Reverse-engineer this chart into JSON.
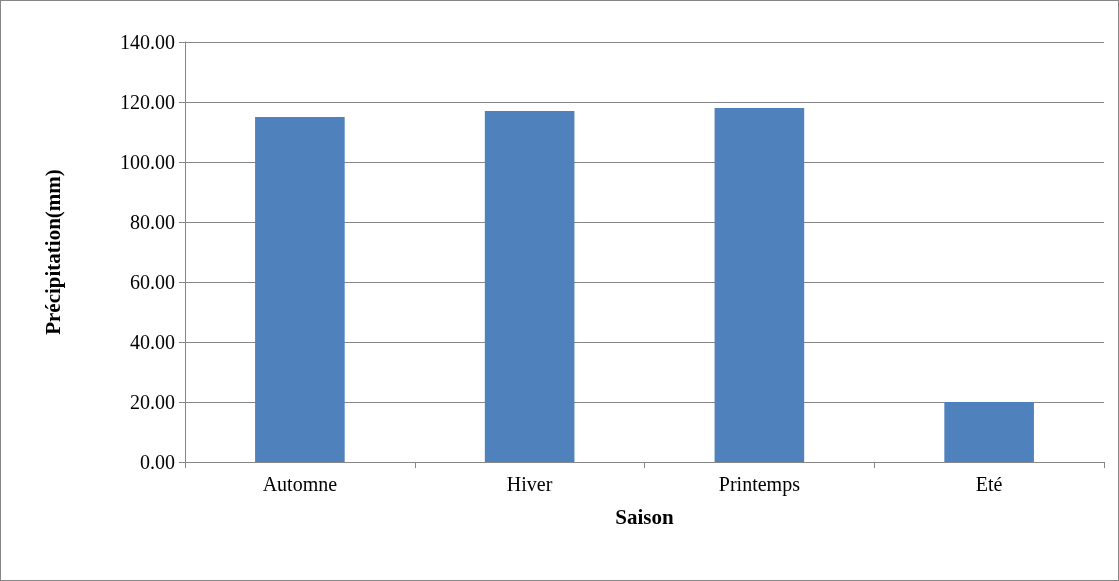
{
  "chart_data": {
    "type": "bar",
    "xlabel": "Saison",
    "ylabel": "Précipitation(mm)",
    "categories": [
      "Automne",
      "Hiver",
      "Printemps",
      "Eté"
    ],
    "values": [
      115,
      117,
      118,
      20
    ],
    "color": "#4f81bd",
    "ylim": [
      0,
      140
    ],
    "yticks": [
      {
        "value": 0,
        "label": "0.00"
      },
      {
        "value": 20,
        "label": "20.00"
      },
      {
        "value": 40,
        "label": "40.00"
      },
      {
        "value": 60,
        "label": "60.00"
      },
      {
        "value": 80,
        "label": "80.00"
      },
      {
        "value": 100,
        "label": "100.00"
      },
      {
        "value": 120,
        "label": "120.00"
      },
      {
        "value": 140,
        "label": "140.00"
      }
    ],
    "grid": "y"
  }
}
